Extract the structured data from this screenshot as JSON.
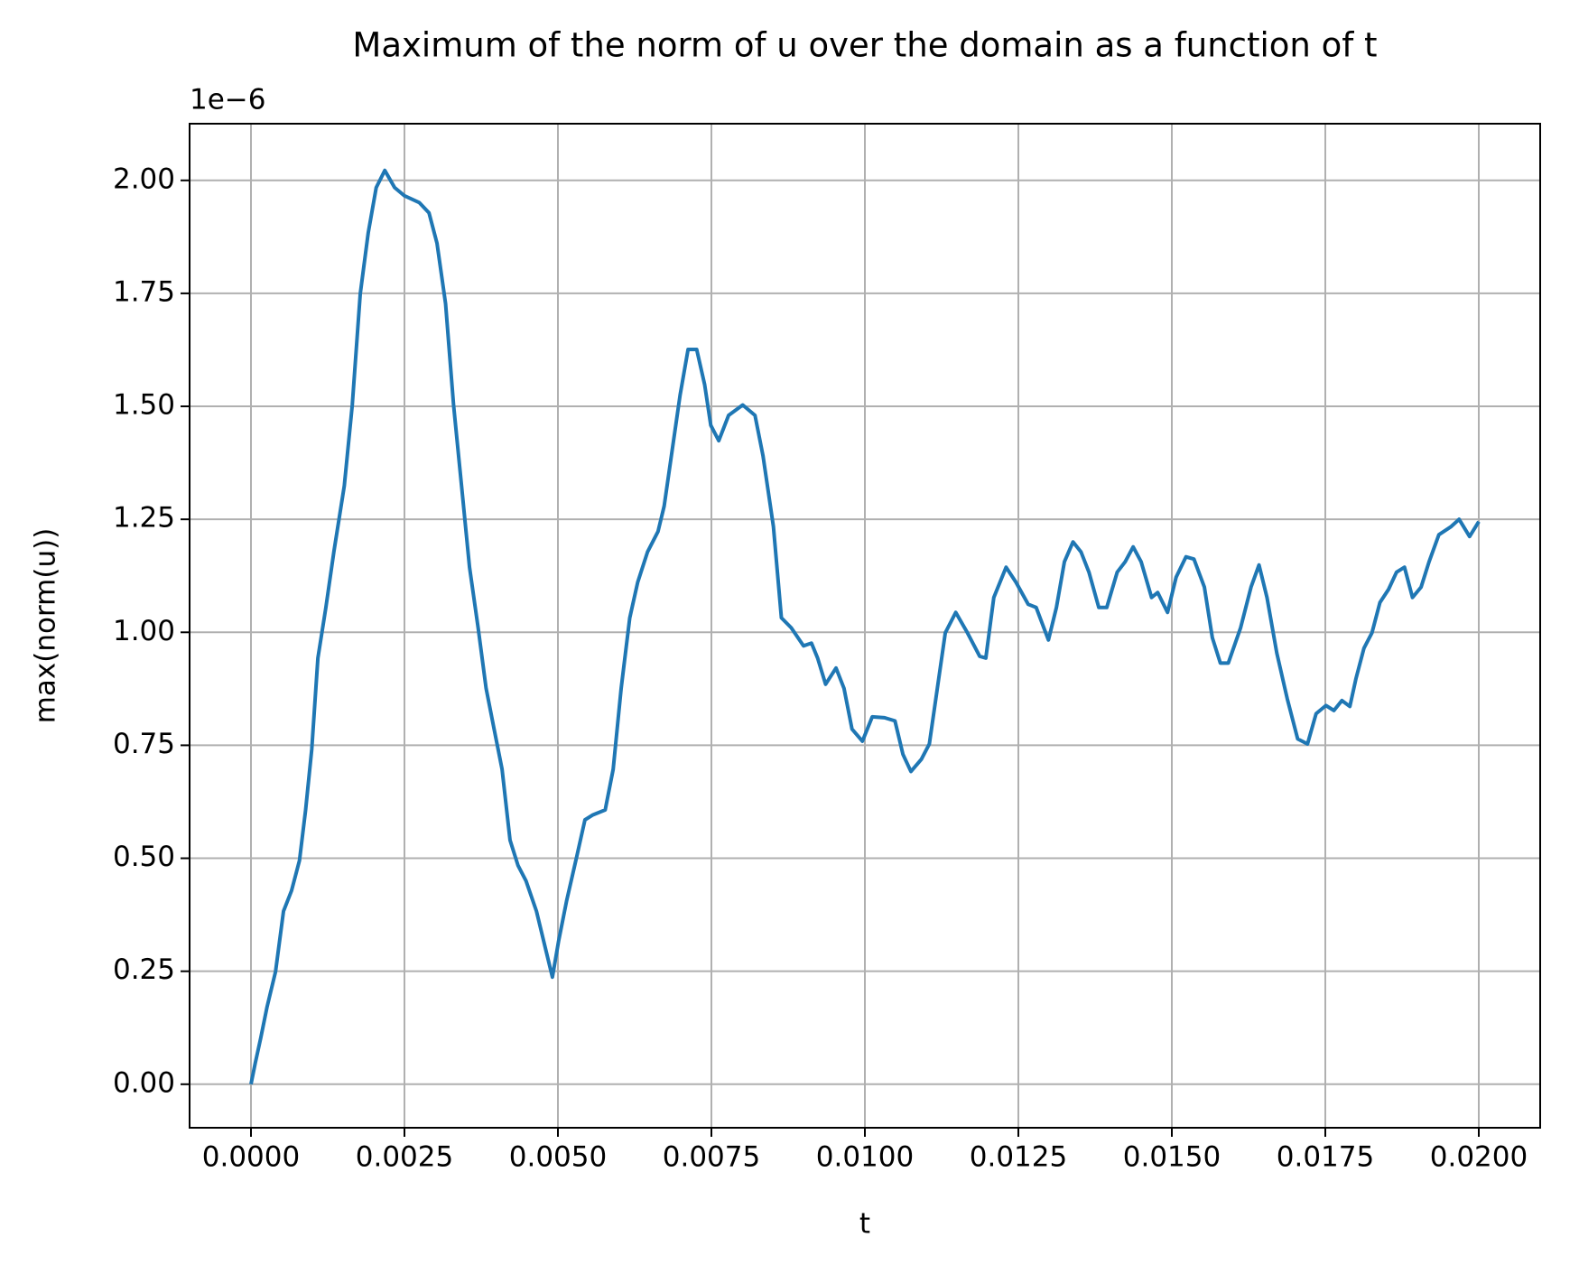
{
  "chart_data": {
    "type": "line",
    "title": "Maximum of the norm of u over the domain as a function of t",
    "xlabel": "t",
    "ylabel": "max(norm(u))",
    "y_offset_text": "1e−6",
    "x": [
      0,
      7e-05,
      0.00016,
      0.00026,
      0.0004,
      0.00053,
      0.00066,
      0.00079,
      0.00089,
      0.00099,
      0.00109,
      0.00122,
      0.00135,
      0.00152,
      0.00165,
      0.00178,
      0.00191,
      0.00204,
      0.00218,
      0.00234,
      0.0025,
      0.00274,
      0.0029,
      0.00303,
      0.00317,
      0.0033,
      0.00343,
      0.00356,
      0.0037,
      0.00383,
      0.00396,
      0.00409,
      0.00422,
      0.00435,
      0.00448,
      0.00465,
      0.00481,
      0.00491,
      0.00501,
      0.00514,
      0.00531,
      0.00544,
      0.00557,
      0.00577,
      0.0059,
      0.00603,
      0.00617,
      0.0063,
      0.00646,
      0.00663,
      0.00673,
      0.00686,
      0.00699,
      0.00712,
      0.00726,
      0.00739,
      0.00749,
      0.00762,
      0.00778,
      0.00801,
      0.00821,
      0.00834,
      0.00851,
      0.00864,
      0.0088,
      0.009,
      0.00913,
      0.00923,
      0.00936,
      0.00953,
      0.00966,
      0.00979,
      0.00996,
      0.01012,
      0.01032,
      0.01049,
      0.01062,
      0.01075,
      0.01092,
      0.01105,
      0.01118,
      0.01131,
      0.01148,
      0.01167,
      0.01187,
      0.01197,
      0.0121,
      0.0123,
      0.01246,
      0.01266,
      0.01279,
      0.01299,
      0.01312,
      0.01325,
      0.01339,
      0.01352,
      0.01365,
      0.01381,
      0.01394,
      0.01411,
      0.01424,
      0.01437,
      0.0145,
      0.01467,
      0.01477,
      0.01493,
      0.01507,
      0.01523,
      0.01536,
      0.01553,
      0.01566,
      0.01579,
      0.01592,
      0.01612,
      0.01629,
      0.01642,
      0.01655,
      0.01671,
      0.01688,
      0.01705,
      0.01721,
      0.01735,
      0.01751,
      0.01764,
      0.01777,
      0.0179,
      0.018,
      0.01813,
      0.01826,
      0.01839,
      0.01853,
      0.01866,
      0.01879,
      0.01892,
      0.01906,
      0.01919,
      0.01935,
      0.01955,
      0.01968,
      0.01985,
      0.02
    ],
    "series": [
      {
        "color": "#1f77b4",
        "values": [
          0,
          0.047,
          0.103,
          0.17,
          0.249,
          0.383,
          0.428,
          0.495,
          0.607,
          0.741,
          0.943,
          1.055,
          1.178,
          1.324,
          1.503,
          1.749,
          1.884,
          1.984,
          2.022,
          1.984,
          1.966,
          1.951,
          1.928,
          1.861,
          1.727,
          1.503,
          1.324,
          1.144,
          1.01,
          0.876,
          0.786,
          0.697,
          0.54,
          0.484,
          0.45,
          0.383,
          0.293,
          0.237,
          0.316,
          0.405,
          0.506,
          0.585,
          0.596,
          0.607,
          0.697,
          0.876,
          1.032,
          1.111,
          1.178,
          1.223,
          1.279,
          1.402,
          1.525,
          1.626,
          1.626,
          1.548,
          1.458,
          1.424,
          1.48,
          1.503,
          1.48,
          1.391,
          1.234,
          1.032,
          1.01,
          0.97,
          0.976,
          0.943,
          0.885,
          0.921,
          0.876,
          0.786,
          0.759,
          0.813,
          0.811,
          0.804,
          0.73,
          0.692,
          0.719,
          0.753,
          0.876,
          0.999,
          1.044,
          0.999,
          0.947,
          0.943,
          1.077,
          1.144,
          1.111,
          1.062,
          1.055,
          0.983,
          1.055,
          1.156,
          1.2,
          1.178,
          1.133,
          1.055,
          1.055,
          1.133,
          1.156,
          1.189,
          1.156,
          1.077,
          1.088,
          1.044,
          1.122,
          1.167,
          1.162,
          1.1,
          0.988,
          0.932,
          0.932,
          1.01,
          1.1,
          1.149,
          1.077,
          0.954,
          0.853,
          0.764,
          0.753,
          0.82,
          0.838,
          0.827,
          0.849,
          0.836,
          0.898,
          0.965,
          0.999,
          1.066,
          1.095,
          1.133,
          1.144,
          1.077,
          1.1,
          1.156,
          1.216,
          1.234,
          1.25,
          1.212,
          1.245
        ]
      }
    ],
    "xlim": [
      -0.001,
      0.021
    ],
    "ylim": [
      -0.0963,
      2.1254
    ],
    "xticks": [
      {
        "value": 0,
        "label": "0.0000"
      },
      {
        "value": 0.0025,
        "label": "0.0025"
      },
      {
        "value": 0.005,
        "label": "0.0050"
      },
      {
        "value": 0.0075,
        "label": "0.0075"
      },
      {
        "value": 0.01,
        "label": "0.0100"
      },
      {
        "value": 0.0125,
        "label": "0.0125"
      },
      {
        "value": 0.015,
        "label": "0.0150"
      },
      {
        "value": 0.0175,
        "label": "0.0175"
      },
      {
        "value": 0.02,
        "label": "0.0200"
      }
    ],
    "yticks": [
      {
        "value": 0,
        "label": "0.00"
      },
      {
        "value": 0.25,
        "label": "0.25"
      },
      {
        "value": 0.5,
        "label": "0.50"
      },
      {
        "value": 0.75,
        "label": "0.75"
      },
      {
        "value": 1,
        "label": "1.00"
      },
      {
        "value": 1.25,
        "label": "1.25"
      },
      {
        "value": 1.5,
        "label": "1.50"
      },
      {
        "value": 1.75,
        "label": "1.75"
      },
      {
        "value": 2,
        "label": "2.00"
      }
    ],
    "grid": true
  }
}
